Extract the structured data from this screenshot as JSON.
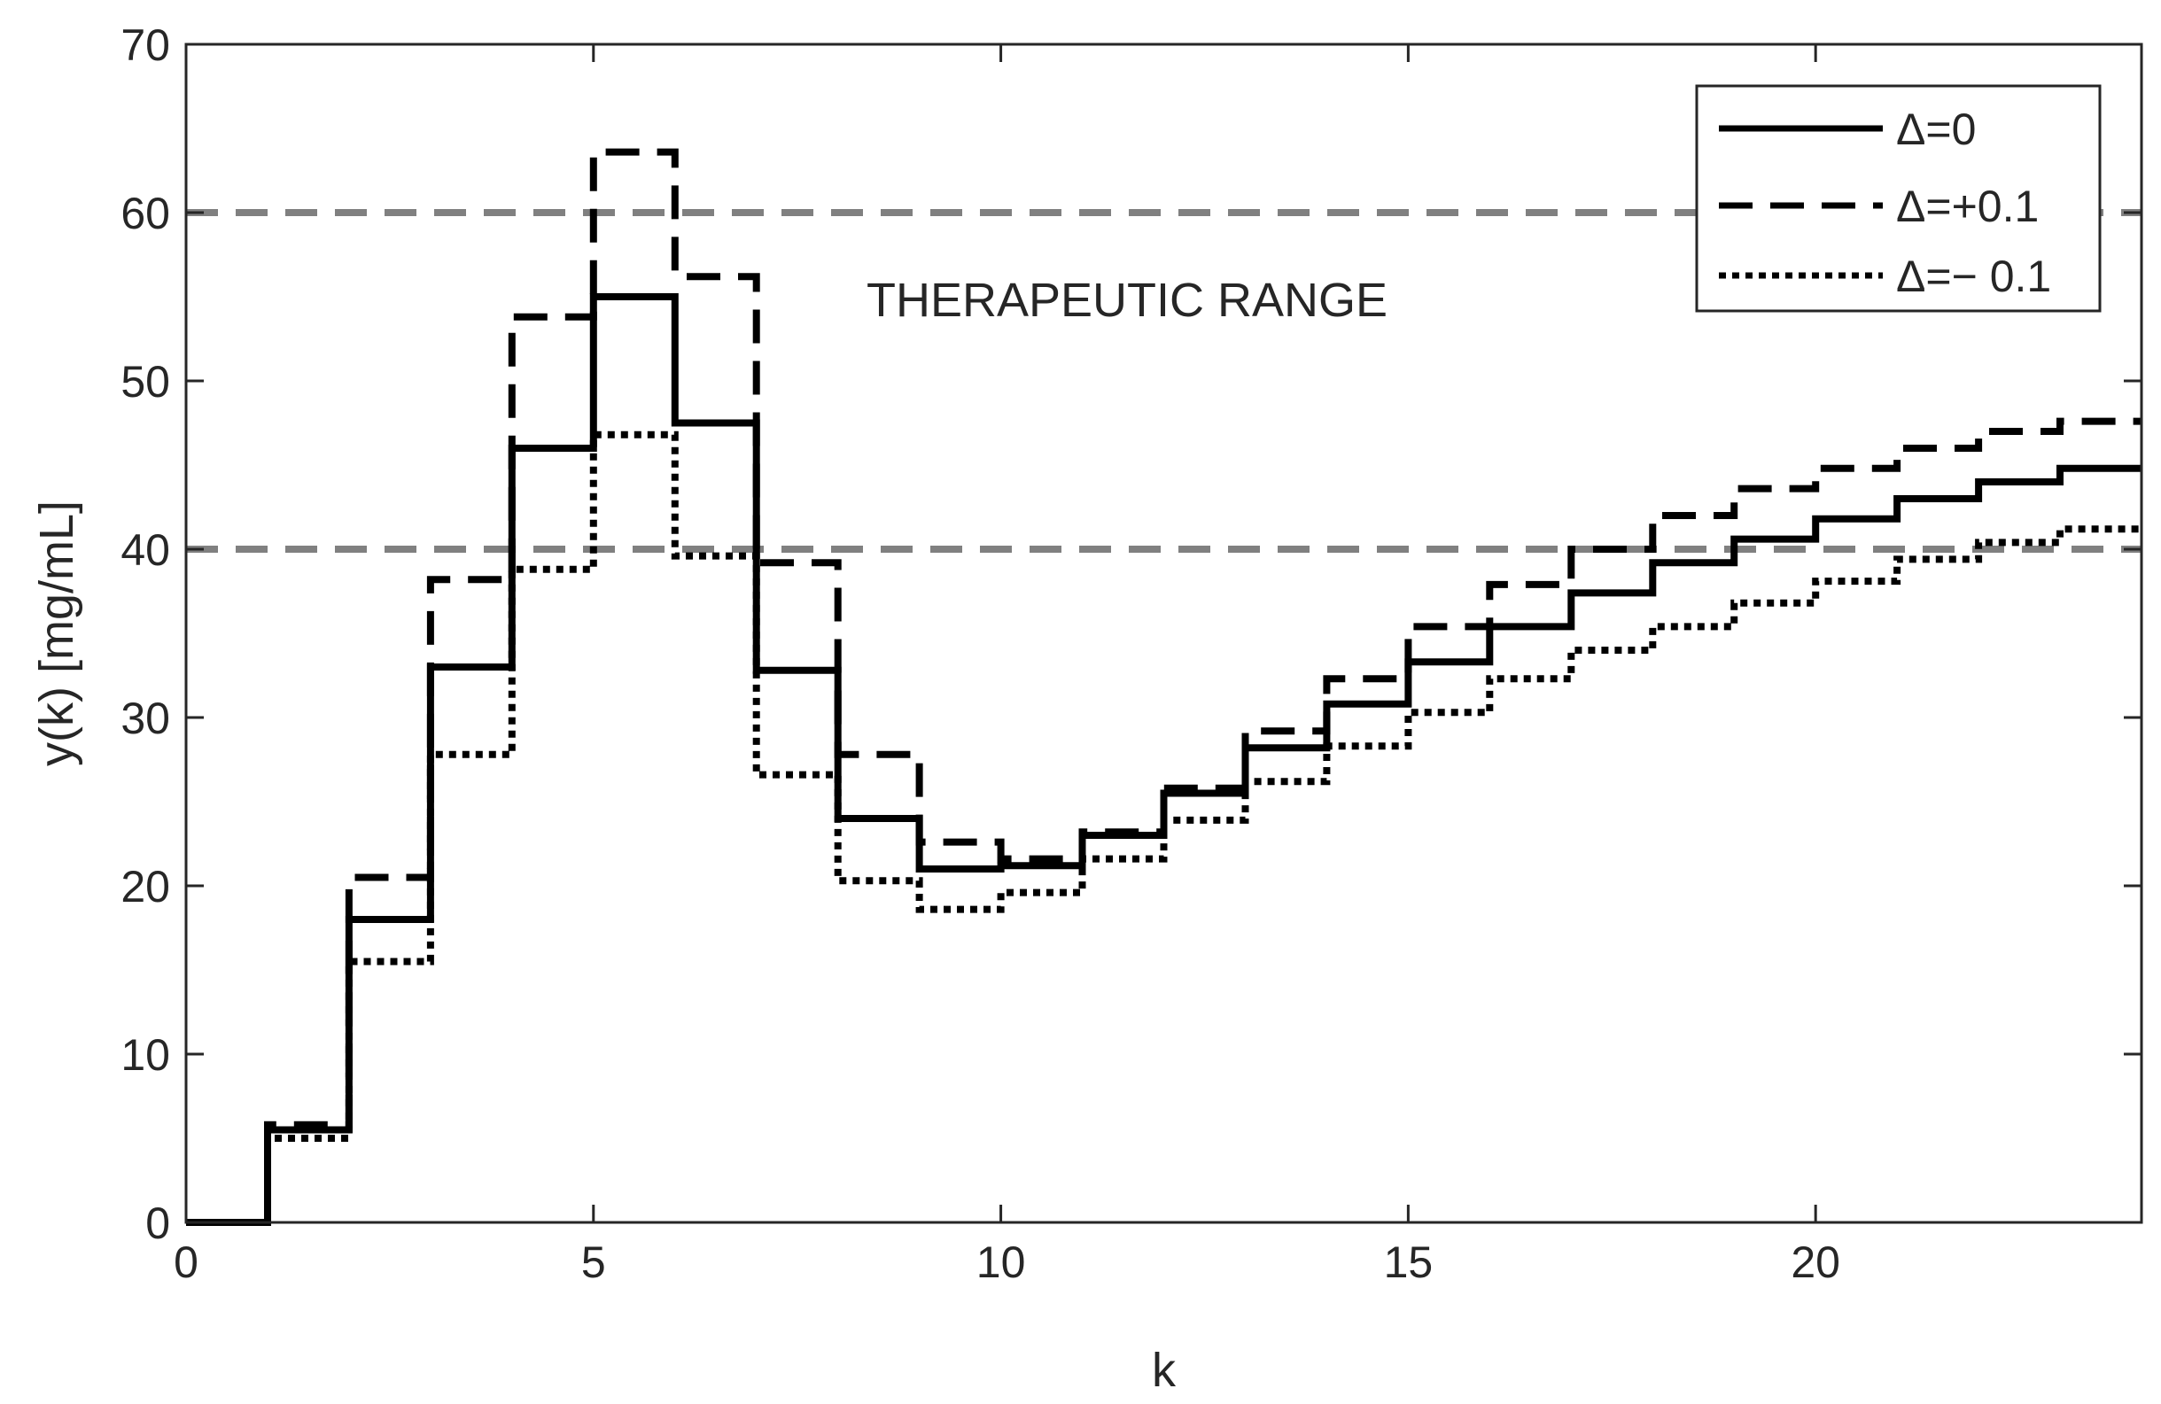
{
  "chart_data": {
    "type": "line",
    "step": true,
    "xlabel": "k",
    "ylabel": "y(k) [mg/mL]",
    "xlim": [
      0,
      24
    ],
    "ylim": [
      0,
      70
    ],
    "xticks": [
      0,
      5,
      10,
      15,
      20
    ],
    "yticks": [
      0,
      10,
      20,
      30,
      40,
      50,
      60,
      70
    ],
    "grid": false,
    "legend_position": "top-right",
    "annotation": "THERAPEUTIC RANGE",
    "reference_lines": [
      {
        "y": 60,
        "color": "#808080",
        "style": "dashed"
      },
      {
        "y": 40,
        "color": "#808080",
        "style": "dashed"
      }
    ],
    "x": [
      0,
      1,
      2,
      3,
      4,
      5,
      6,
      7,
      8,
      9,
      10,
      11,
      12,
      13,
      14,
      15,
      16,
      17,
      18,
      19,
      20,
      21,
      22,
      23
    ],
    "series": [
      {
        "name": "Δ=0",
        "style": "solid",
        "color": "#000000",
        "values": [
          0,
          5.5,
          18,
          33,
          46,
          55,
          47.5,
          32.8,
          24,
          21,
          21.2,
          23,
          25.5,
          28.2,
          30.8,
          33.3,
          35.4,
          37.4,
          39.2,
          40.6,
          41.8,
          43,
          44,
          44.8
        ]
      },
      {
        "name": "Δ=+0.1",
        "style": "dashed",
        "color": "#000000",
        "values": [
          0,
          5.8,
          20.5,
          38.2,
          53.8,
          63.6,
          56.2,
          39.2,
          27.8,
          22.6,
          21.6,
          23.2,
          25.8,
          29.2,
          32.3,
          35.4,
          37.9,
          40,
          42,
          43.6,
          44.8,
          46,
          47,
          47.6
        ]
      },
      {
        "name": "Δ=− 0.1",
        "style": "dotted",
        "color": "#000000",
        "values": [
          0,
          5,
          15.5,
          27.8,
          38.8,
          46.8,
          39.6,
          26.6,
          20.3,
          18.6,
          19.6,
          21.6,
          23.9,
          26.2,
          28.3,
          30.3,
          32.3,
          34,
          35.4,
          36.8,
          38.1,
          39.4,
          40.4,
          41.2
        ]
      }
    ]
  }
}
